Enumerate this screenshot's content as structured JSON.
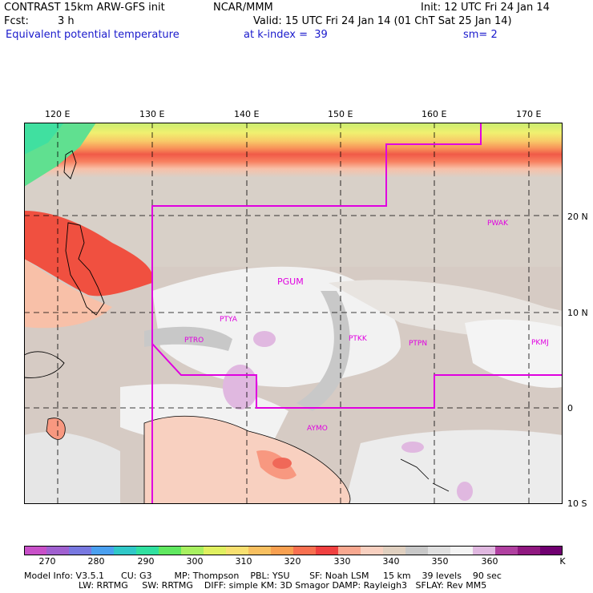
{
  "header": {
    "model": "CONTRAST 15km ARW-GFS init",
    "org": "NCAR/MMM",
    "init": "Init: 12 UTC Fri 24 Jan 14",
    "fcst_label": "Fcst:",
    "fcst_value": "3 h",
    "valid": "Valid: 15 UTC Fri 24 Jan 14 (01 ChT Sat 25 Jan 14)",
    "field": "Equivalent potential temperature",
    "level": "at k-index =  39",
    "smooth": "sm= 2"
  },
  "map": {
    "lon_labels": [
      "120 E",
      "130 E",
      "140 E",
      "150 E",
      "160 E",
      "170 E"
    ],
    "lat_labels": [
      "20 N",
      "10 N",
      "0",
      "10 S"
    ],
    "stations": [
      "PWAK",
      "PGUM",
      "PTYA",
      "PTRO",
      "PTKK",
      "PTPN",
      "PKMJ",
      "AYMO"
    ],
    "boundary_color": "#e000e0"
  },
  "colorbar": {
    "ticks": [
      "270",
      "280",
      "290",
      "300",
      "310",
      "320",
      "330",
      "340",
      "350",
      "360"
    ],
    "unit": "K",
    "colors": [
      "#c850c8",
      "#a060d0",
      "#7878e0",
      "#4aa0f0",
      "#30c8c8",
      "#30e0a0",
      "#60e860",
      "#a8f060",
      "#e0f060",
      "#f8e070",
      "#f8c060",
      "#f8a050",
      "#f87050",
      "#f04040",
      "#f8a890",
      "#f8d0c0",
      "#e0d0c0",
      "#c8c8c8",
      "#e0e0e0",
      "#f4f4f4",
      "#e0b8e0",
      "#b040a0",
      "#901880",
      "#700070"
    ]
  },
  "footer": {
    "line1": "Model Info: V3.5.1      CU: G3        MP: Thompson    PBL: YSU       SF: Noah LSM     15 km    39 levels    90 sec",
    "line2": "LW: RRTMG     SW: RRTMG    DIFF: simple KM: 3D Smagor DAMP: Rayleigh3   SFLAY: Rev MM5"
  }
}
